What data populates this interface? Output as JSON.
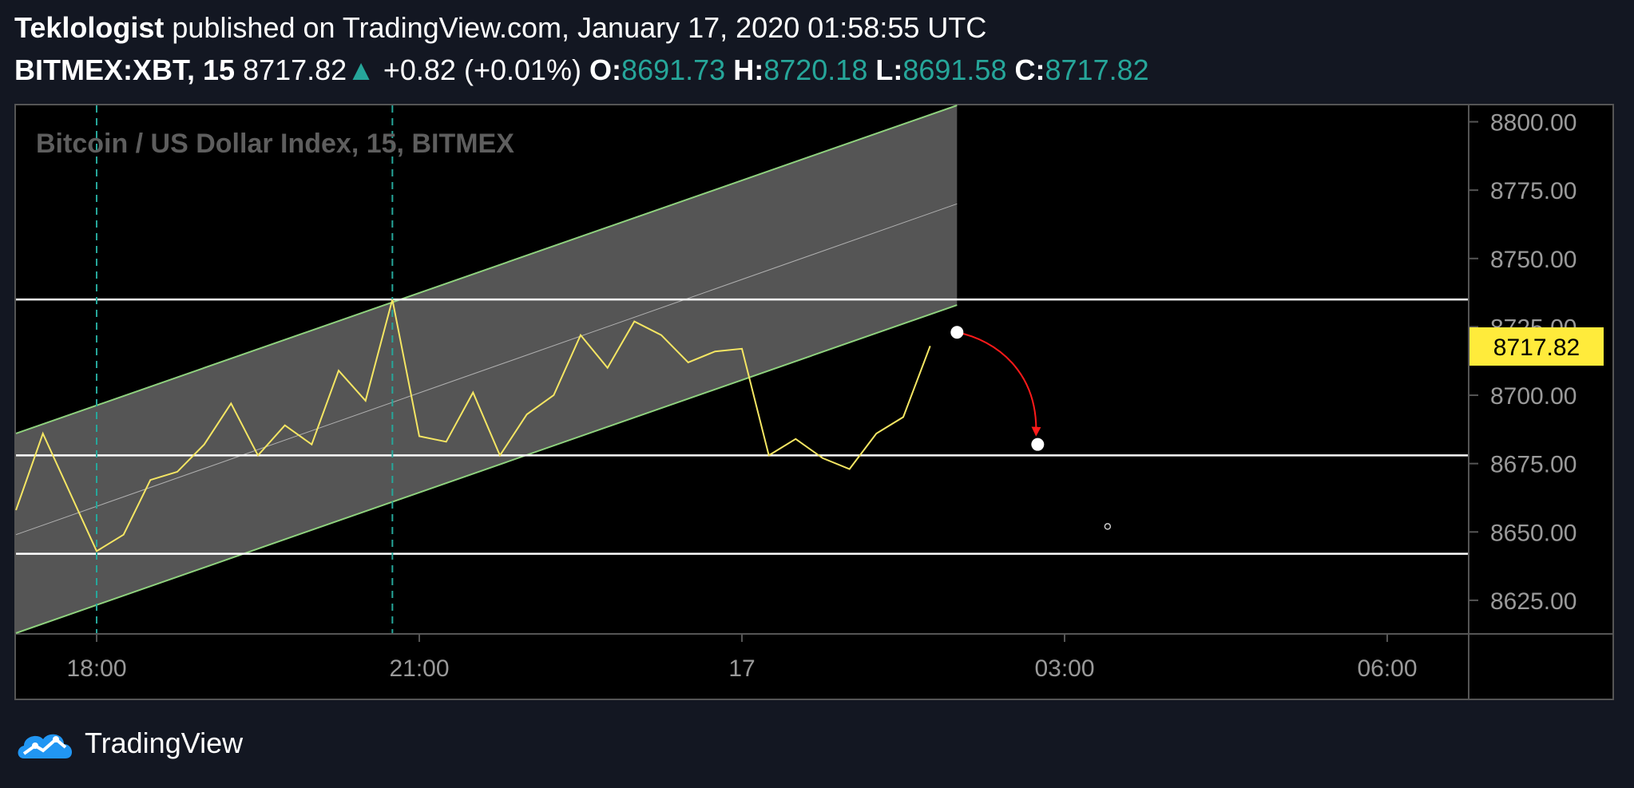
{
  "header": {
    "author": "Teklologist",
    "published": "published on TradingView.com, January 17, 2020 01:58:55 UTC",
    "symbol": "BITMEX:XBT, 15",
    "last": "8717.82",
    "change": "+0.82 (+0.01%)",
    "o_label": "O:",
    "o_value": "8691.73",
    "h_label": "H:",
    "h_value": "8720.18",
    "l_label": "L:",
    "l_value": "8691.58",
    "c_label": "C:",
    "c_value": "8717.82"
  },
  "footer": {
    "brand": "TradingView"
  },
  "colors": {
    "background": "#000000",
    "page": "#131722",
    "price_line": "#f5e663",
    "channel_line": "#8fd17e",
    "channel_fill": "#5a5a5a",
    "hline": "#ffffff",
    "vline": "#26a69a",
    "arrow": "#ff1a1a",
    "price_tag": "#ffeb3b"
  },
  "chart_data": {
    "type": "line",
    "title": "Bitcoin / US Dollar Index, 15, BITMEX",
    "ylim": [
      8613,
      8806
    ],
    "y_ticks": [
      "8800.00",
      "8775.00",
      "8750.00",
      "8725.00",
      "8700.00",
      "8675.00",
      "8650.00",
      "8625.00"
    ],
    "y_tick_values": [
      8800,
      8775,
      8750,
      8725,
      8700,
      8675,
      8650,
      8625
    ],
    "x_ticks": [
      "18:00",
      "21:00",
      "17",
      "03:00",
      "06:00"
    ],
    "x_tick_hours": [
      18,
      21,
      24,
      27,
      30
    ],
    "xlim_hours": [
      17.25,
      30.75
    ],
    "last_price_label": "8717.82",
    "last_price": 8717.82,
    "series": [
      {
        "x_hours": [
          17.25,
          17.5,
          18.0,
          18.25,
          18.5,
          18.75,
          19.0,
          19.25,
          19.5,
          19.75,
          20.0,
          20.25,
          20.5,
          20.75,
          21.0,
          21.25,
          21.5,
          21.75,
          22.0,
          22.25,
          22.5,
          22.75,
          23.0,
          23.25,
          23.5,
          23.75,
          24.0,
          24.25,
          24.5,
          24.75,
          25.0,
          25.25,
          25.5,
          25.75
        ],
        "y": [
          8658,
          8686,
          8643,
          8649,
          8669,
          8672,
          8682,
          8697,
          8678,
          8689,
          8682,
          8709,
          8698,
          8735,
          8685,
          8683,
          8701,
          8678,
          8693,
          8700,
          8722,
          8710,
          8727,
          8722,
          8712,
          8716,
          8717,
          8678,
          8684,
          8677,
          8673,
          8686,
          8692,
          8718
        ]
      }
    ],
    "horizontal_levels": [
      8735,
      8678,
      8642
    ],
    "vertical_markers_hours": [
      18.0,
      20.75
    ],
    "channel": {
      "x_hours": [
        17.25,
        26.0
      ],
      "upper": [
        8686,
        8806
      ],
      "mid": [
        8649,
        8770
      ],
      "lower": [
        8613,
        8733
      ]
    },
    "projection": {
      "start": {
        "x_hours": 26.0,
        "y": 8723
      },
      "end": {
        "x_hours": 26.75,
        "y": 8682
      }
    },
    "small_marker": {
      "x_hours": 27.4,
      "y": 8652
    }
  }
}
